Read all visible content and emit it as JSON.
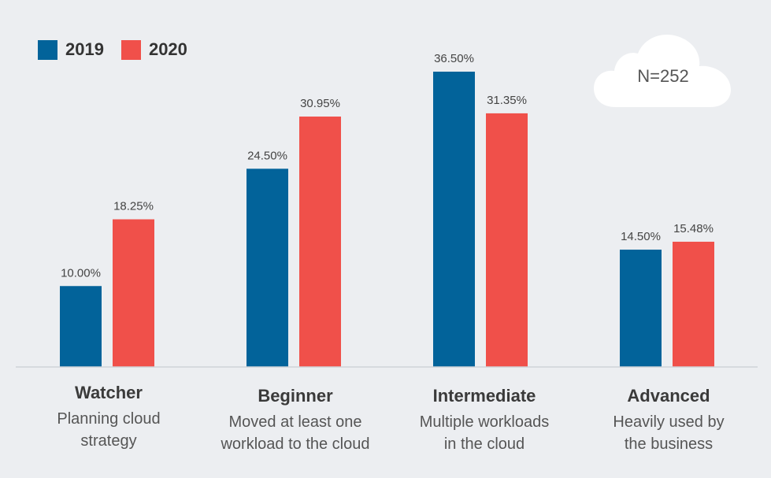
{
  "legend": [
    {
      "label": "2019",
      "color": "#02639a"
    },
    {
      "label": "2020",
      "color": "#f0504a"
    }
  ],
  "badge": {
    "text": "N=252"
  },
  "categories_detail": [
    {
      "title": "Watcher",
      "desc_line1": "Planning cloud",
      "desc_line2": "strategy"
    },
    {
      "title": "Beginner",
      "desc_line1": "Moved at least one",
      "desc_line2": "workload to the cloud"
    },
    {
      "title": "Intermediate",
      "desc_line1": "Multiple workloads",
      "desc_line2": "in the cloud"
    },
    {
      "title": "Advanced",
      "desc_line1": "Heavily used by",
      "desc_line2": "the business"
    }
  ],
  "chart_data": {
    "type": "bar",
    "categories": [
      "Watcher",
      "Beginner",
      "Intermediate",
      "Advanced"
    ],
    "series": [
      {
        "name": "2019",
        "values": [
          10.0,
          24.5,
          36.5,
          14.5
        ],
        "labels": [
          "10.00%",
          "24.50%",
          "36.50%",
          "14.50%"
        ],
        "color": "#02639a"
      },
      {
        "name": "2020",
        "values": [
          18.25,
          30.95,
          31.35,
          15.48
        ],
        "labels": [
          "18.25%",
          "30.95%",
          "31.35%",
          "15.48%"
        ],
        "color": "#f0504a"
      }
    ],
    "ylim": [
      0,
      36.5
    ],
    "grid": false,
    "legend_position": "top-left"
  }
}
